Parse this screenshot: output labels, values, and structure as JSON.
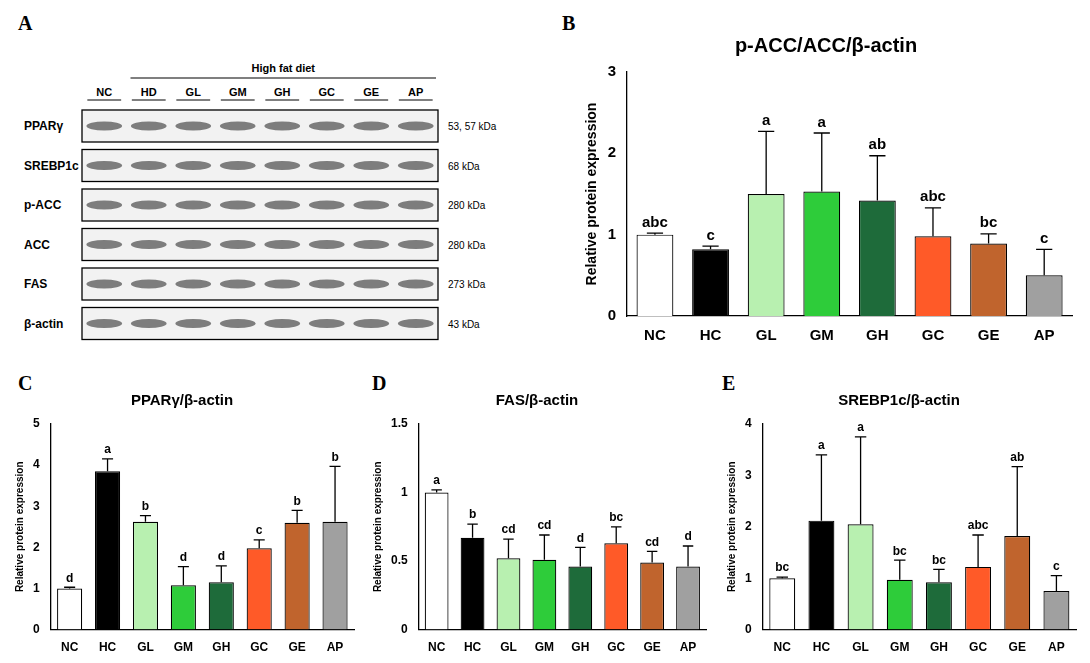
{
  "blot": {
    "panel": "A",
    "header": "High fat diet",
    "lanes": [
      "NC",
      "HD",
      "GL",
      "GM",
      "GH",
      "GC",
      "GE",
      "AP"
    ],
    "rows": [
      {
        "label": "PPARγ",
        "size": "53, 57 kDa"
      },
      {
        "label": "SREBP1c",
        "size": "68 kDa"
      },
      {
        "label": "p-ACC",
        "size": "280 kDa"
      },
      {
        "label": "ACC",
        "size": "280 kDa"
      },
      {
        "label": "FAS",
        "size": "273 kDa"
      },
      {
        "label": "β-actin",
        "size": "43 kDa"
      }
    ]
  },
  "chart_data": [
    {
      "panel": "B",
      "type": "bar",
      "title": "p-ACC/ACC/β-actin",
      "ylabel": "Relative protein expression",
      "categories": [
        "NC",
        "HC",
        "GL",
        "GM",
        "GH",
        "GC",
        "GE",
        "AP"
      ],
      "values": [
        1.0,
        0.82,
        1.5,
        1.53,
        1.42,
        0.98,
        0.89,
        0.5
      ],
      "errors": [
        0.02,
        0.04,
        0.77,
        0.72,
        0.55,
        0.35,
        0.12,
        0.32
      ],
      "significance_letters": [
        "abc",
        "c",
        "a",
        "a",
        "ab",
        "abc",
        "bc",
        "c"
      ],
      "colors": [
        "#ffffff",
        "#000000",
        "#b8f0b0",
        "#2ecc3a",
        "#1e6b3a",
        "#ff5a28",
        "#c0642d",
        "#a0a0a0"
      ],
      "ylim": [
        0,
        3
      ],
      "yticks": [
        0,
        1,
        2,
        3
      ],
      "grid": false
    },
    {
      "panel": "C",
      "type": "bar",
      "title": "PPARγ/β-actin",
      "ylabel": "Relative protein expression",
      "categories": [
        "NC",
        "HC",
        "GL",
        "GM",
        "GH",
        "GC",
        "GE",
        "AP"
      ],
      "values": [
        1.0,
        3.85,
        2.62,
        1.08,
        1.15,
        1.98,
        2.6,
        2.62
      ],
      "errors": [
        0.03,
        0.3,
        0.15,
        0.45,
        0.4,
        0.2,
        0.3,
        1.35
      ],
      "significance_letters": [
        "d",
        "a",
        "b",
        "d",
        "d",
        "c",
        "b",
        "b"
      ],
      "colors": [
        "#ffffff",
        "#000000",
        "#b8f0b0",
        "#2ecc3a",
        "#1e6b3a",
        "#ff5a28",
        "#c0642d",
        "#a0a0a0"
      ],
      "ylim": [
        0,
        5
      ],
      "yticks": [
        0,
        1,
        2,
        3,
        4,
        5
      ],
      "grid": false
    },
    {
      "panel": "D",
      "type": "bar",
      "title": "FAS/β-actin",
      "ylabel": "Relative protein expression",
      "categories": [
        "NC",
        "HC",
        "GL",
        "GM",
        "GH",
        "GC",
        "GE",
        "AP"
      ],
      "values": [
        1.0,
        0.67,
        0.52,
        0.51,
        0.46,
        0.63,
        0.49,
        0.46
      ],
      "errors": [
        0.02,
        0.1,
        0.14,
        0.18,
        0.14,
        0.12,
        0.08,
        0.15
      ],
      "significance_letters": [
        "a",
        "b",
        "cd",
        "cd",
        "d",
        "bc",
        "cd",
        "d"
      ],
      "colors": [
        "#ffffff",
        "#000000",
        "#b8f0b0",
        "#2ecc3a",
        "#1e6b3a",
        "#ff5a28",
        "#c0642d",
        "#a0a0a0"
      ],
      "ylim": [
        0,
        1.5
      ],
      "yticks": [
        0,
        0.5,
        1,
        1.5
      ],
      "grid": false
    },
    {
      "panel": "E",
      "type": "bar",
      "title": "SREBP1c/β-actin",
      "ylabel": "Relative protein expression",
      "categories": [
        "NC",
        "HC",
        "GL",
        "GM",
        "GH",
        "GC",
        "GE",
        "AP"
      ],
      "values": [
        1.0,
        2.12,
        2.05,
        0.97,
        0.92,
        1.22,
        1.82,
        0.75
      ],
      "errors": [
        0.02,
        1.28,
        1.7,
        0.38,
        0.25,
        0.62,
        1.35,
        0.3
      ],
      "significance_letters": [
        "bc",
        "a",
        "a",
        "bc",
        "bc",
        "abc",
        "ab",
        "c"
      ],
      "colors": [
        "#ffffff",
        "#000000",
        "#b8f0b0",
        "#2ecc3a",
        "#1e6b3a",
        "#ff5a28",
        "#c0642d",
        "#a0a0a0"
      ],
      "ylim": [
        0,
        4
      ],
      "yticks": [
        0,
        1,
        2,
        3,
        4
      ],
      "grid": false
    }
  ]
}
